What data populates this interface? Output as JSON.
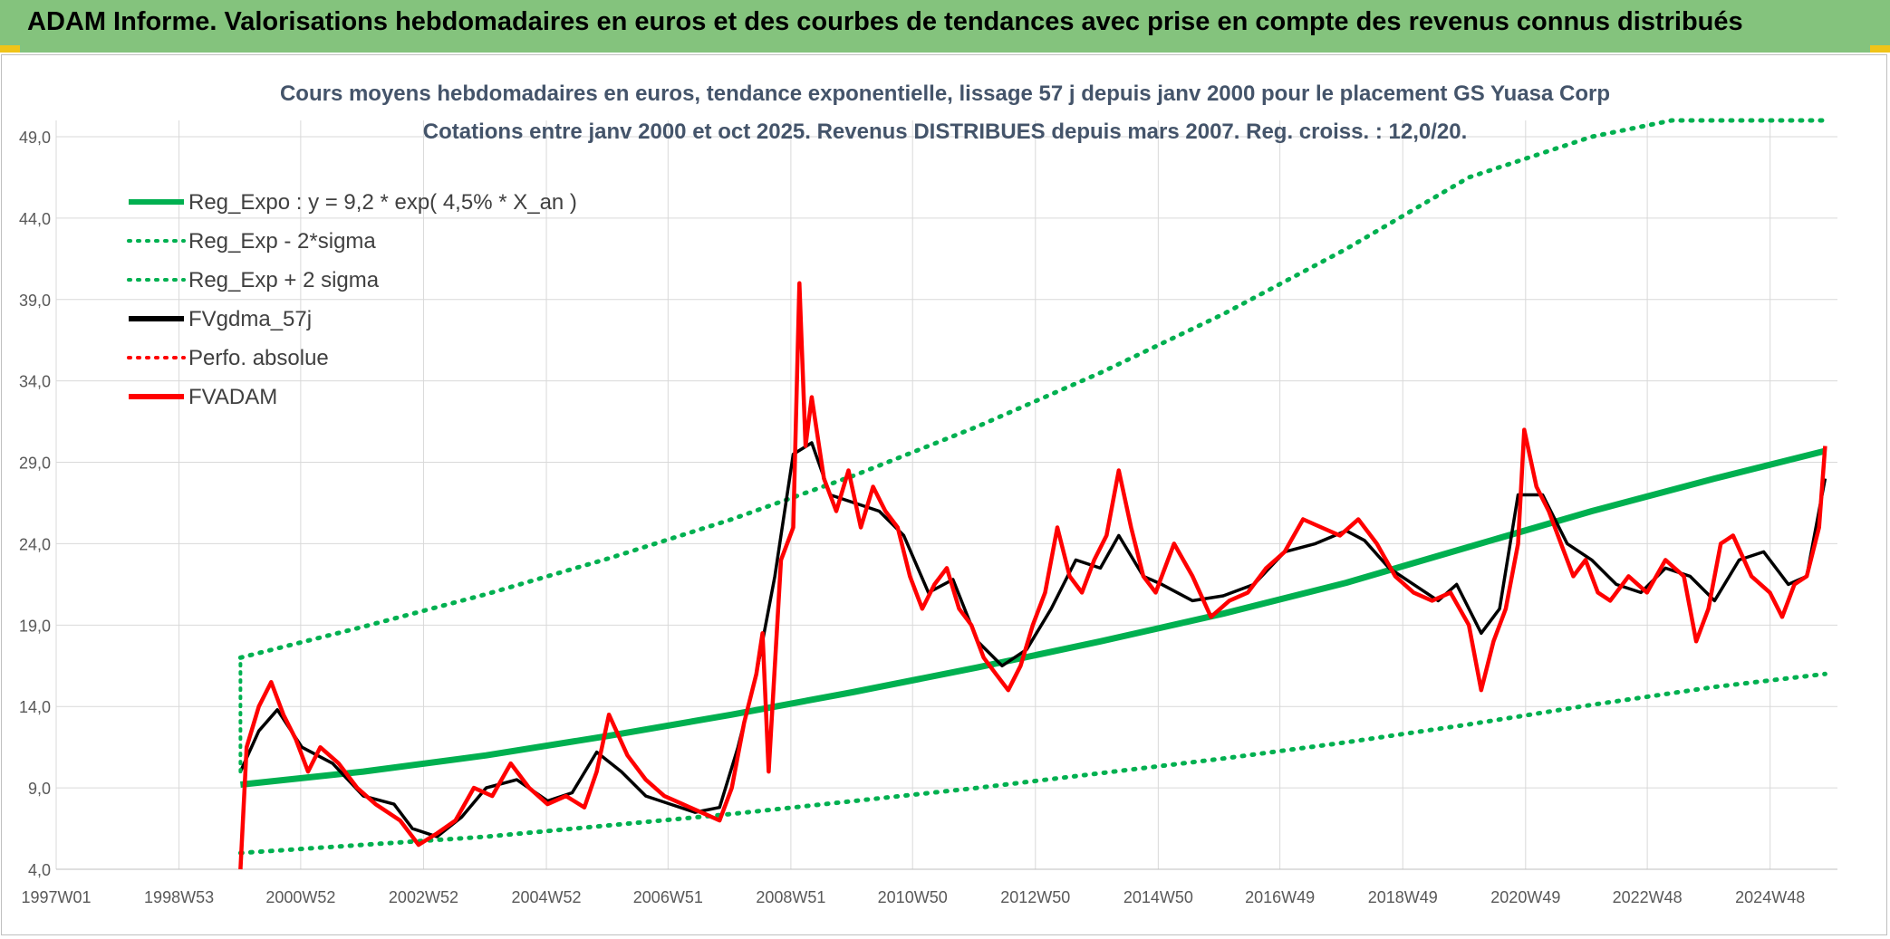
{
  "header": {
    "title": "ADAM Informe. Valorisations hebdomadaires en euros et des courbes de tendances avec prise en compte des revenus connus distribués"
  },
  "chart_data": {
    "type": "line",
    "title": "Cours moyens hebdomadaires en euros, tendance exponentielle, lissage 57 j depuis janv 2000 pour le placement GS Yuasa Corp",
    "subtitle": "Cotations entre janv 2000 et oct 2025. Revenus DISTRIBUES depuis mars 2007. Reg. croiss. : 12,0/20.",
    "xlabel": "",
    "ylabel": "",
    "x_ticks": [
      "1997W01",
      "1998W53",
      "2000W52",
      "2002W52",
      "2004W52",
      "2006W51",
      "2008W51",
      "2010W50",
      "2012W50",
      "2014W50",
      "2016W49",
      "2018W49",
      "2020W49",
      "2022W48",
      "2024W48"
    ],
    "x_range": [
      1997.0,
      2026.0
    ],
    "y_ticks": [
      "4,0",
      "9,0",
      "14,0",
      "19,0",
      "24,0",
      "29,0",
      "34,0",
      "39,0",
      "44,0",
      "49,0"
    ],
    "ylim": [
      4,
      50
    ],
    "grid": true,
    "legend_position": "top-left",
    "legend": [
      {
        "name": "Reg_Expo : y = 9,2 * exp( 4,5% *  X_an )",
        "color": "#00b050",
        "style": "solid"
      },
      {
        "name": "Reg_Exp - 2*sigma",
        "color": "#00b050",
        "style": "dotted"
      },
      {
        "name": "Reg_Exp + 2 sigma",
        "color": "#00b050",
        "style": "dotted"
      },
      {
        "name": "FVgdma_57j",
        "color": "#000000",
        "style": "solid"
      },
      {
        "name": "Perfo. absolue",
        "color": "#ff0000",
        "style": "dotted"
      },
      {
        "name": "FVADAM",
        "color": "#ff0000",
        "style": "solid"
      }
    ],
    "series": [
      {
        "name": "Reg_Expo : y = 9,2 * exp( 4,5% *  X_an )",
        "color": "#00b050",
        "x": [
          2000.0,
          2002.0,
          2004.0,
          2006.0,
          2008.0,
          2010.0,
          2012.0,
          2014.0,
          2016.0,
          2018.0,
          2020.0,
          2022.0,
          2024.0,
          2025.8
        ],
        "values": [
          9.2,
          10.0,
          11.0,
          12.2,
          13.5,
          14.9,
          16.4,
          18.0,
          19.7,
          21.6,
          23.8,
          26.0,
          28.0,
          29.7
        ]
      },
      {
        "name": "Reg_Exp - 2*sigma",
        "color": "#00b050",
        "x": [
          2000.0,
          2002.0,
          2004.0,
          2006.0,
          2008.0,
          2010.0,
          2012.0,
          2014.0,
          2016.0,
          2018.0,
          2020.0,
          2022.0,
          2024.0,
          2025.8
        ],
        "values": [
          5.0,
          5.5,
          6.0,
          6.7,
          7.4,
          8.2,
          9.0,
          9.9,
          10.8,
          11.8,
          12.9,
          14.1,
          15.2,
          16.0
        ]
      },
      {
        "name": "Reg_Exp + 2 sigma",
        "color": "#00b050",
        "x": [
          2000.0,
          2002.0,
          2004.0,
          2006.0,
          2008.0,
          2010.0,
          2012.0,
          2014.0,
          2016.0,
          2018.0,
          2020.0,
          2022.0,
          2023.3,
          2024.0,
          2025.8
        ],
        "values": [
          17.0,
          18.9,
          20.9,
          23.1,
          25.5,
          28.2,
          31.2,
          34.5,
          38.1,
          42.1,
          46.5,
          49.0,
          50.0,
          50.0,
          50.0
        ]
      },
      {
        "name": "FVgdma_57j",
        "color": "#000000",
        "x": [
          2000.0,
          2000.3,
          2000.6,
          2001.0,
          2001.5,
          2002.0,
          2002.5,
          2002.8,
          2003.2,
          2003.6,
          2004.0,
          2004.5,
          2005.0,
          2005.4,
          2005.8,
          2006.2,
          2006.6,
          2007.0,
          2007.4,
          2007.8,
          2008.1,
          2008.4,
          2008.7,
          2009.0,
          2009.3,
          2009.6,
          2010.0,
          2010.4,
          2010.8,
          2011.2,
          2011.6,
          2012.0,
          2012.4,
          2012.8,
          2013.2,
          2013.6,
          2014.0,
          2014.3,
          2014.7,
          2015.0,
          2015.5,
          2016.0,
          2016.5,
          2017.0,
          2017.5,
          2018.0,
          2018.3,
          2018.7,
          2019.1,
          2019.5,
          2019.8,
          2020.2,
          2020.5,
          2020.8,
          2021.2,
          2021.6,
          2022.0,
          2022.4,
          2022.8,
          2023.2,
          2023.6,
          2024.0,
          2024.4,
          2024.8,
          2025.2,
          2025.5,
          2025.8
        ],
        "values": [
          10.0,
          12.5,
          13.8,
          11.5,
          10.5,
          8.5,
          8.0,
          6.5,
          6.0,
          7.2,
          9.0,
          9.5,
          8.2,
          8.7,
          11.2,
          10.0,
          8.5,
          8.0,
          7.5,
          7.8,
          11.5,
          16.0,
          22.0,
          29.5,
          30.2,
          27.0,
          26.5,
          26.0,
          24.5,
          21.0,
          21.8,
          18.0,
          16.5,
          17.5,
          20.0,
          23.0,
          22.5,
          24.5,
          22.0,
          21.5,
          20.5,
          20.8,
          21.5,
          23.5,
          24.0,
          24.8,
          24.2,
          22.5,
          21.5,
          20.5,
          21.5,
          18.5,
          20.0,
          27.0,
          27.0,
          24.0,
          23.0,
          21.5,
          21.0,
          22.5,
          22.0,
          20.5,
          23.0,
          23.5,
          21.5,
          22.0,
          28.0
        ]
      },
      {
        "name": "FVADAM",
        "color": "#ff0000",
        "x": [
          2000.0,
          2000.1,
          2000.3,
          2000.5,
          2000.7,
          2000.9,
          2001.1,
          2001.3,
          2001.6,
          2001.9,
          2002.2,
          2002.6,
          2002.9,
          2003.2,
          2003.5,
          2003.8,
          2004.1,
          2004.4,
          2004.7,
          2005.0,
          2005.3,
          2005.6,
          2005.8,
          2006.0,
          2006.3,
          2006.6,
          2006.9,
          2007.2,
          2007.5,
          2007.8,
          2008.0,
          2008.2,
          2008.4,
          2008.5,
          2008.6,
          2008.8,
          2009.0,
          2009.1,
          2009.2,
          2009.3,
          2009.5,
          2009.7,
          2009.9,
          2010.1,
          2010.3,
          2010.5,
          2010.7,
          2010.9,
          2011.1,
          2011.3,
          2011.5,
          2011.7,
          2011.9,
          2012.1,
          2012.3,
          2012.5,
          2012.7,
          2012.9,
          2013.1,
          2013.3,
          2013.5,
          2013.7,
          2013.9,
          2014.1,
          2014.3,
          2014.5,
          2014.7,
          2014.9,
          2015.2,
          2015.5,
          2015.8,
          2016.1,
          2016.4,
          2016.7,
          2017.0,
          2017.3,
          2017.6,
          2017.9,
          2018.2,
          2018.5,
          2018.8,
          2019.1,
          2019.4,
          2019.7,
          2020.0,
          2020.2,
          2020.4,
          2020.6,
          2020.8,
          2020.9,
          2021.1,
          2021.3,
          2021.5,
          2021.7,
          2021.9,
          2022.1,
          2022.3,
          2022.6,
          2022.9,
          2023.2,
          2023.5,
          2023.7,
          2023.9,
          2024.1,
          2024.3,
          2024.6,
          2024.9,
          2025.1,
          2025.3,
          2025.5,
          2025.7,
          2025.8
        ],
        "values": [
          4.0,
          11.5,
          14.0,
          15.5,
          13.5,
          12.0,
          10.0,
          11.5,
          10.5,
          9.0,
          8.0,
          7.0,
          5.5,
          6.2,
          7.0,
          9.0,
          8.5,
          10.5,
          9.0,
          8.0,
          8.5,
          7.8,
          10.0,
          13.5,
          11.0,
          9.5,
          8.5,
          8.0,
          7.5,
          7.0,
          9.0,
          13.0,
          16.0,
          18.5,
          10.0,
          23.0,
          25.0,
          40.0,
          30.0,
          33.0,
          28.0,
          26.0,
          28.5,
          25.0,
          27.5,
          26.0,
          25.0,
          22.0,
          20.0,
          21.5,
          22.5,
          20.0,
          19.0,
          17.0,
          16.0,
          15.0,
          16.5,
          19.0,
          21.0,
          25.0,
          22.0,
          21.0,
          23.0,
          24.5,
          28.5,
          25.0,
          22.0,
          21.0,
          24.0,
          22.0,
          19.5,
          20.5,
          21.0,
          22.5,
          23.5,
          25.5,
          25.0,
          24.5,
          25.5,
          24.0,
          22.0,
          21.0,
          20.5,
          21.0,
          19.0,
          15.0,
          18.0,
          20.0,
          24.0,
          31.0,
          27.5,
          26.0,
          24.0,
          22.0,
          23.0,
          21.0,
          20.5,
          22.0,
          21.0,
          23.0,
          22.0,
          18.0,
          20.0,
          24.0,
          24.5,
          22.0,
          21.0,
          19.5,
          21.5,
          22.0,
          25.0,
          30.0
        ]
      }
    ]
  }
}
